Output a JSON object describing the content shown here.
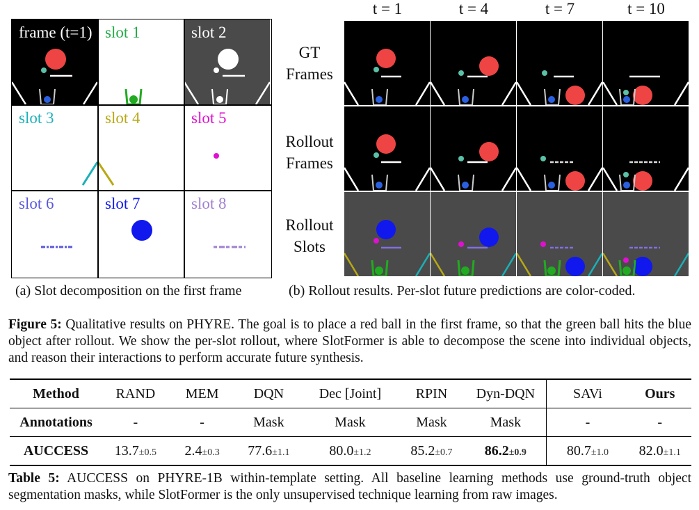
{
  "panel_a": {
    "cells": [
      {
        "label": "frame (t=1)",
        "color": "#ffffff"
      },
      {
        "label": "slot 1",
        "color": "#22aa44"
      },
      {
        "label": "slot 2",
        "color": "#ffffff"
      },
      {
        "label": "slot 3",
        "color": "#1ab0b8"
      },
      {
        "label": "slot 4",
        "color": "#b8a814"
      },
      {
        "label": "slot 5",
        "color": "#e010d0"
      },
      {
        "label": "slot 6",
        "color": "#5a58d8"
      },
      {
        "label": "slot 7",
        "color": "#1018ee"
      },
      {
        "label": "slot 8",
        "color": "#a080d0"
      }
    ],
    "caption": "(a)  Slot decomposition on the first frame"
  },
  "panel_b": {
    "time_labels": [
      "t = 1",
      "t = 4",
      "t = 7",
      "t = 10"
    ],
    "row_labels": [
      [
        "GT",
        "Frames"
      ],
      [
        "Rollout",
        "Frames"
      ],
      [
        "Rollout",
        "Slots"
      ]
    ],
    "caption": "(b)  Rollout results. Per-slot future predictions are color-coded."
  },
  "figure_caption": {
    "label": "Figure 5:",
    "text": " Qualitative results on PHYRE. The goal is to place a red ball in the first frame, so that the green ball hits the blue object after rollout. We show the per-slot rollout, where SlotFormer is able to decompose the scene into individual objects, and reason their interactions to perform accurate future synthesis."
  },
  "table": {
    "header": [
      "Method",
      "RAND",
      "MEM",
      "DQN",
      "Dec [Joint]",
      "RPIN",
      "Dyn-DQN",
      "SAVi",
      "Ours"
    ],
    "annotations": [
      "Annotations",
      "-",
      "-",
      "Mask",
      "Mask",
      "Mask",
      "Mask",
      "-",
      "-"
    ],
    "auccess_label": "AUCCESS",
    "auccess": [
      {
        "v": "13.7",
        "pm": "±0.5"
      },
      {
        "v": "2.4",
        "pm": "±0.3"
      },
      {
        "v": "77.6",
        "pm": "±1.1"
      },
      {
        "v": "80.0",
        "pm": "±1.2"
      },
      {
        "v": "85.2",
        "pm": "±0.7"
      },
      {
        "v": "86.2",
        "pm": "±0.9"
      },
      {
        "v": "80.7",
        "pm": "±1.0"
      },
      {
        "v": "82.0",
        "pm": "±1.1"
      }
    ]
  },
  "table_caption": {
    "label": "Table 5:",
    "text": " AUCCESS on PHYRE-1B within-template setting. All baseline learning methods use ground-truth object segmentation masks, while SlotFormer is the only unsupervised technique learning from raw images."
  },
  "colors": {
    "red_ball": "#ee4444",
    "teal_ball": "#5bc0a8",
    "blue_ball": "#2a60e0",
    "slot_blue": "#1018ee",
    "slot_green": "#22aa22",
    "slot_magenta": "#e010d0",
    "slot_purple": "#8070e0",
    "slot_teal": "#1ab0b8",
    "slot_yellow": "#b8a814"
  }
}
